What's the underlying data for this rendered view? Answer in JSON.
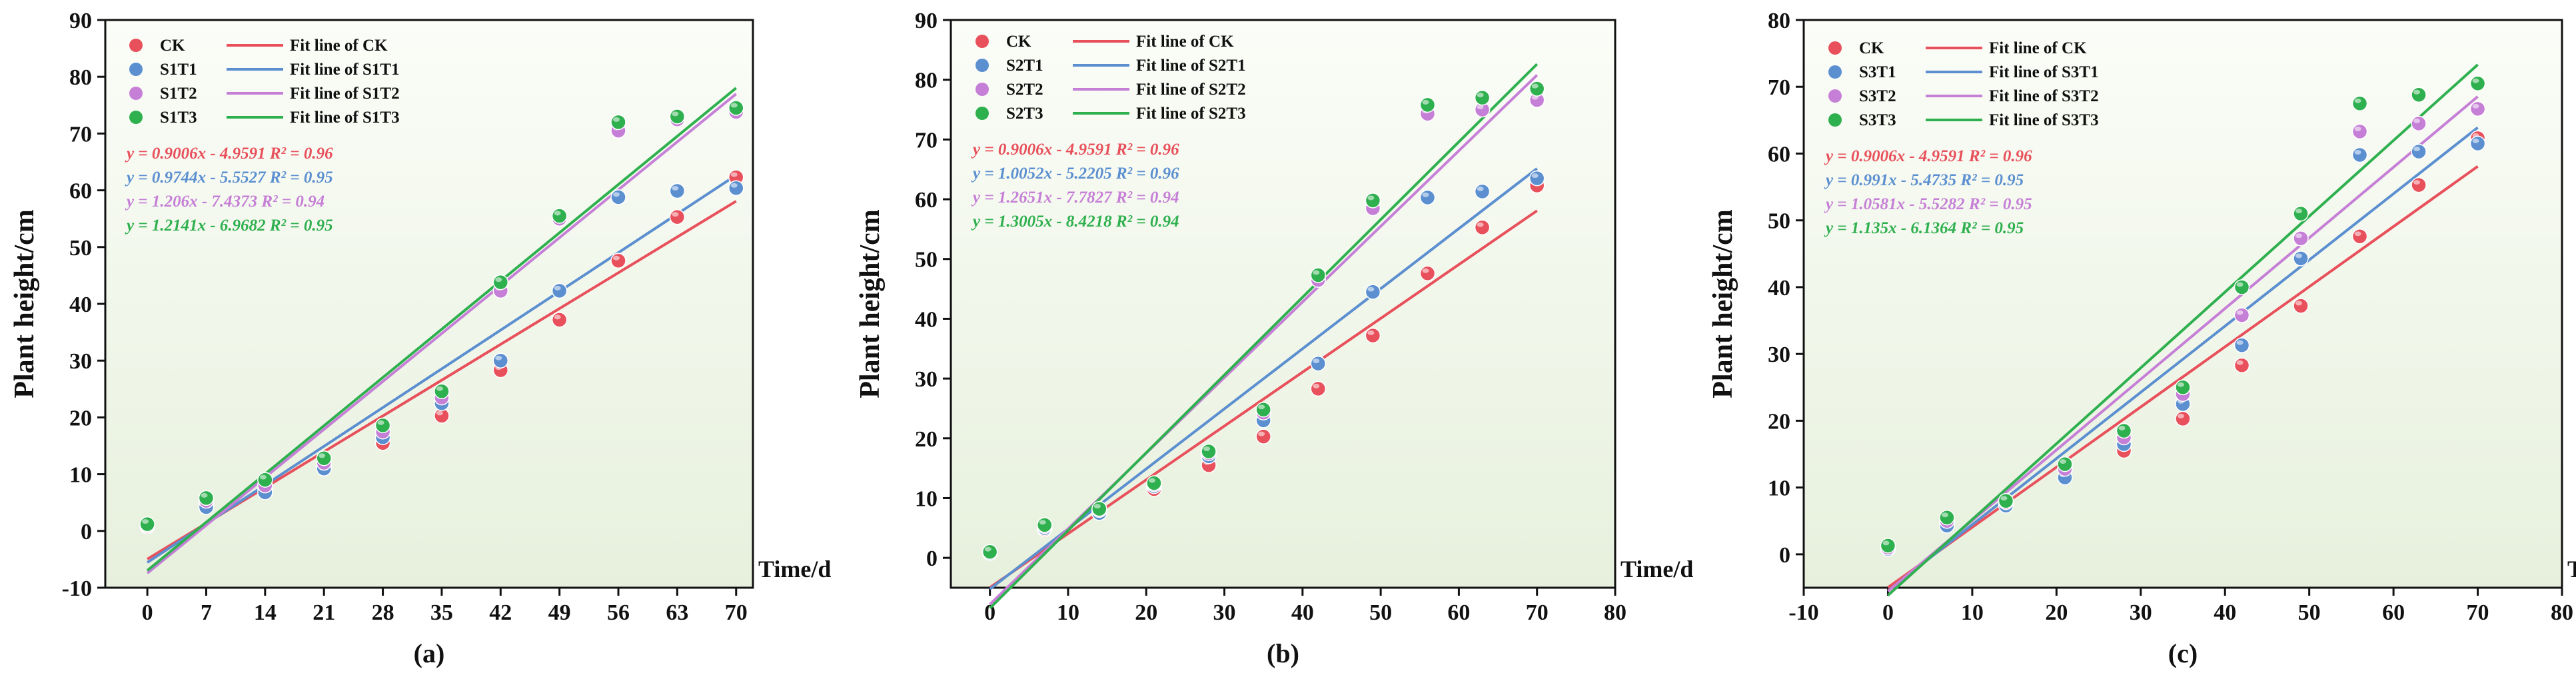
{
  "chart_data": [
    {
      "type": "scatter",
      "panel_label": "(a)",
      "ylabel": "Plant height/cm",
      "xlabel": "Time/d",
      "xlim": [
        -5,
        72
      ],
      "ylim": [
        -10,
        90
      ],
      "xticks": [
        0,
        7,
        14,
        21,
        28,
        35,
        42,
        49,
        56,
        63,
        70
      ],
      "yticks": [
        -10,
        0,
        10,
        20,
        30,
        40,
        50,
        60,
        70,
        80,
        90
      ],
      "x": [
        0,
        7,
        14,
        21,
        28,
        35,
        42,
        49,
        56,
        63,
        70
      ],
      "legend": [
        "CK",
        "Fit line of CK",
        "S1T1",
        "Fit line of S1T1",
        "S1T2",
        "Fit line of S1T2",
        "S1T3",
        "Fit line of S1T3"
      ],
      "series": [
        {
          "name": "CK",
          "color": "#e8505b",
          "values": [
            0.8,
            4.8,
            7.5,
            11.5,
            15.5,
            20.3,
            28.3,
            37.2,
            47.6,
            55.3,
            62.3
          ],
          "fit": {
            "slope": 0.9006,
            "intercept": -4.9591
          },
          "equation": "y = 0.9006x - 4.9591 R² = 0.96"
        },
        {
          "name": "S1T1",
          "color": "#5b8fd0",
          "values": [
            1.0,
            4.2,
            6.8,
            11.0,
            16.5,
            22.5,
            30.0,
            42.3,
            58.8,
            59.9,
            60.4
          ],
          "fit": {
            "slope": 0.9744,
            "intercept": -5.5527
          },
          "equation": "y = 0.9744x - 5.5527 R² = 0.95"
        },
        {
          "name": "S1T2",
          "color": "#c67fd6",
          "values": [
            1.0,
            5.3,
            8.0,
            12.0,
            17.5,
            23.5,
            42.3,
            55.0,
            70.5,
            72.5,
            73.8
          ],
          "fit": {
            "slope": 1.206,
            "intercept": -7.4373
          },
          "equation": "y = 1.206x - 7.4373 R² = 0.94"
        },
        {
          "name": "S1T3",
          "color": "#2fb04f",
          "values": [
            1.2,
            5.8,
            9.0,
            12.8,
            18.6,
            24.6,
            43.8,
            55.5,
            72.0,
            73.0,
            74.5
          ],
          "fit": {
            "slope": 1.2141,
            "intercept": -6.9682
          },
          "equation": "y = 1.2141x - 6.9682 R² = 0.95"
        }
      ]
    },
    {
      "type": "scatter",
      "panel_label": "(b)",
      "ylabel": "Plant height/cm",
      "xlabel": "Time/d",
      "xlim": [
        -5,
        80
      ],
      "ylim": [
        -5,
        90
      ],
      "xticks": [
        0,
        10,
        20,
        30,
        40,
        50,
        60,
        70,
        80
      ],
      "yticks": [
        0,
        10,
        20,
        30,
        40,
        50,
        60,
        70,
        80,
        90
      ],
      "x": [
        0,
        7,
        14,
        21,
        28,
        35,
        42,
        49,
        56,
        63,
        70
      ],
      "legend": [
        "CK",
        "Fit line of CK",
        "S2T1",
        "Fit line of S2T1",
        "S2T2",
        "Fit line of S2T2",
        "S2T3",
        "Fit line of S2T3"
      ],
      "series": [
        {
          "name": "CK",
          "color": "#e8505b",
          "values": [
            0.8,
            4.8,
            7.5,
            11.5,
            15.5,
            20.3,
            28.3,
            37.2,
            47.6,
            55.3,
            62.3
          ],
          "fit": {
            "slope": 0.9006,
            "intercept": -4.9591
          },
          "equation": "y = 0.9006x - 4.9591 R² = 0.96"
        },
        {
          "name": "S2T1",
          "color": "#5b8fd0",
          "values": [
            0.8,
            5.0,
            7.5,
            12.0,
            17.0,
            23.0,
            32.5,
            44.5,
            60.3,
            61.3,
            63.5
          ],
          "fit": {
            "slope": 1.0052,
            "intercept": -5.2205
          },
          "equation": "y = 1.0052x - 5.2205 R² = 0.96"
        },
        {
          "name": "S2T2",
          "color": "#c67fd6",
          "values": [
            1.0,
            5.3,
            8.0,
            12.3,
            17.5,
            24.3,
            46.5,
            58.5,
            74.3,
            75.0,
            76.6
          ],
          "fit": {
            "slope": 1.2651,
            "intercept": -7.7827
          },
          "equation": "y = 1.2651x - 7.7827 R² = 0.94"
        },
        {
          "name": "S2T3",
          "color": "#2fb04f",
          "values": [
            1.0,
            5.5,
            8.2,
            12.5,
            17.8,
            24.8,
            47.3,
            59.8,
            75.8,
            77.0,
            78.5
          ],
          "fit": {
            "slope": 1.3005,
            "intercept": -8.4218
          },
          "equation": "y = 1.3005x - 8.4218 R² = 0.94"
        }
      ]
    },
    {
      "type": "scatter",
      "panel_label": "(c)",
      "ylabel": "Plant height/cm",
      "xlabel": "Time/d",
      "xlim": [
        -10,
        80
      ],
      "ylim": [
        -5,
        80
      ],
      "xticks": [
        -10,
        0,
        10,
        20,
        30,
        40,
        50,
        60,
        70,
        80
      ],
      "yticks": [
        0,
        10,
        20,
        30,
        40,
        50,
        60,
        70,
        80
      ],
      "x": [
        0,
        7,
        14,
        21,
        28,
        35,
        42,
        49,
        56,
        63,
        70
      ],
      "legend": [
        "CK",
        "Fit line of CK",
        "S3T1",
        "Fit line of S3T1",
        "S3T2",
        "Fit line of S3T2",
        "S3T3",
        "Fit line of S3T3"
      ],
      "series": [
        {
          "name": "CK",
          "color": "#e8505b",
          "values": [
            0.8,
            4.8,
            7.5,
            11.5,
            15.5,
            20.3,
            28.3,
            37.2,
            47.6,
            55.3,
            62.3
          ],
          "fit": {
            "slope": 0.9006,
            "intercept": -4.9591
          },
          "equation": "y = 0.9006x - 4.9591 R² = 0.96"
        },
        {
          "name": "S3T1",
          "color": "#5b8fd0",
          "values": [
            0.8,
            4.3,
            7.3,
            11.5,
            16.5,
            22.5,
            31.3,
            44.3,
            59.8,
            60.3,
            61.5
          ],
          "fit": {
            "slope": 0.991,
            "intercept": -5.4735
          },
          "equation": "y = 0.991x - 5.4735 R² = 0.95"
        },
        {
          "name": "S3T2",
          "color": "#c67fd6",
          "values": [
            1.0,
            5.0,
            7.8,
            12.8,
            17.5,
            24.0,
            35.8,
            47.3,
            63.3,
            64.5,
            66.7
          ],
          "fit": {
            "slope": 1.0581,
            "intercept": -5.5282
          },
          "equation": "y = 1.0581x - 5.5282 R² = 0.95"
        },
        {
          "name": "S3T3",
          "color": "#2fb04f",
          "values": [
            1.3,
            5.5,
            8.0,
            13.5,
            18.5,
            25.0,
            40.0,
            51.0,
            67.5,
            68.8,
            70.5
          ],
          "fit": {
            "slope": 1.135,
            "intercept": -6.1364
          },
          "equation": "y = 1.135x - 6.1364 R² = 0.95"
        }
      ]
    }
  ]
}
